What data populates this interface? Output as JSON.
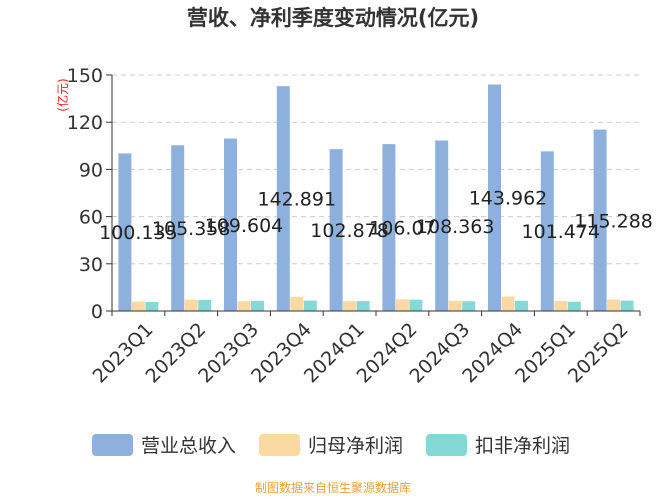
{
  "chart_data": {
    "type": "bar",
    "title": "营收、净利季度变动情况(亿元)",
    "unit_label": "(亿元)",
    "categories": [
      "2023Q1",
      "2023Q2",
      "2023Q3",
      "2023Q4",
      "2024Q1",
      "2024Q2",
      "2024Q3",
      "2024Q4",
      "2025Q1",
      "2025Q2"
    ],
    "series": [
      {
        "name": "营业总收入",
        "color": "#8eb0dd",
        "values": [
          100.135,
          105.358,
          109.604,
          142.891,
          102.878,
          106.07,
          108.363,
          143.962,
          101.474,
          115.288
        ],
        "labels": [
          "100.135",
          "105.358",
          "109.604",
          "142.891",
          "102.878",
          "106.07",
          "108.363",
          "143.962",
          "101.474",
          "115.288"
        ]
      },
      {
        "name": "归母净利润",
        "color": "#fcd9a0",
        "values": [
          6.0,
          7.2,
          6.2,
          9.0,
          6.2,
          7.4,
          6.5,
          9.2,
          6.3,
          7.3
        ]
      },
      {
        "name": "扣非净利润",
        "color": "#84d8d6",
        "values": [
          5.8,
          7.0,
          6.5,
          6.6,
          6.3,
          7.2,
          6.2,
          6.5,
          5.9,
          6.6
        ]
      }
    ],
    "ylim": [
      0,
      150
    ],
    "yticks": [
      0,
      30,
      60,
      90,
      120,
      150
    ],
    "grid": true,
    "legend_position": "bottom"
  },
  "source_text": "制图数据来自恒生聚源数据库"
}
